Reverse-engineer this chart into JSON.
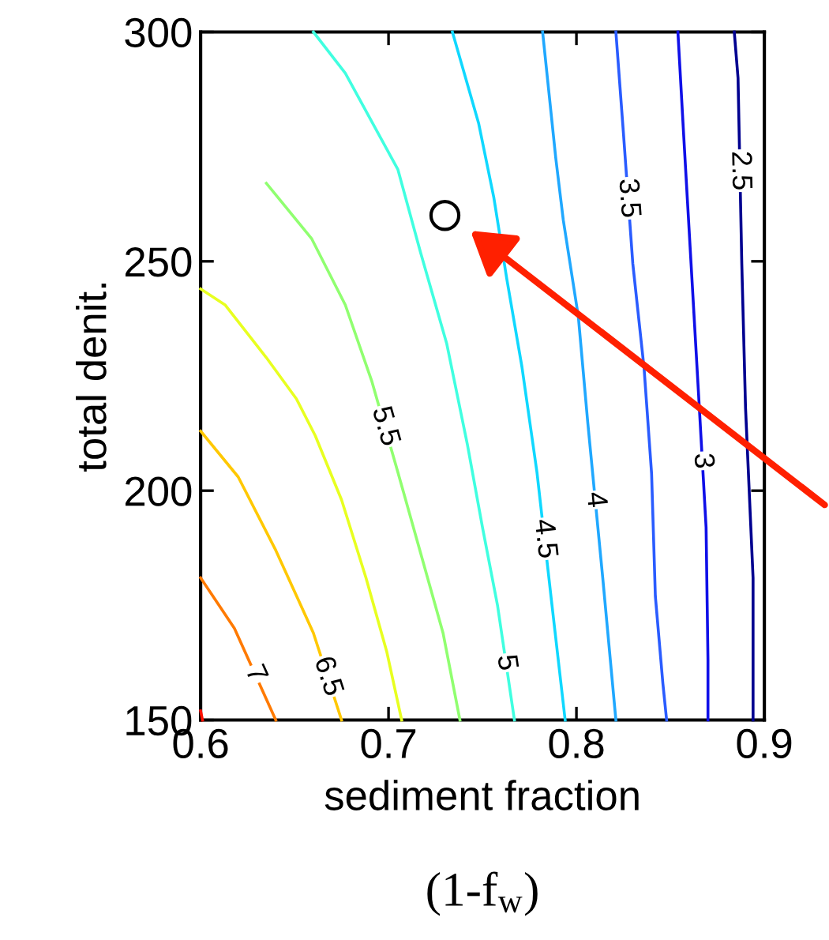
{
  "chart_data": {
    "type": "line",
    "xlabel": "sediment fraction",
    "ylabel": "total denit.",
    "annotations": [
      "(1-f$_{w}$)"
    ],
    "xlim": [
      0.6,
      0.9
    ],
    "ylim": [
      150,
      300
    ],
    "xticks": [
      0.6,
      0.7,
      0.8,
      0.9
    ],
    "yticks": [
      150,
      200,
      250,
      300
    ],
    "grid": false,
    "legend": false,
    "marker": "none",
    "line_style": "solid",
    "series": [
      {
        "color": "#ff1000",
        "x": [
          0.6,
          0.601
        ],
        "values": [
          152,
          150
        ]
      },
      {
        "name": "7",
        "color": "#ff7a00",
        "x": [
          0.6,
          0.618,
          0.64
        ],
        "values": [
          181,
          170,
          150
        ]
      },
      {
        "name": "6.5",
        "color": "#ffc800",
        "x": [
          0.6,
          0.62,
          0.64,
          0.66,
          0.675
        ],
        "values": [
          213,
          203,
          187,
          169,
          150
        ]
      },
      {
        "color": "#e8ff20",
        "x": [
          0.6,
          0.613,
          0.635,
          0.651,
          0.661,
          0.675,
          0.688,
          0.699,
          0.707
        ],
        "values": [
          244,
          240.5,
          229,
          220,
          212,
          198,
          181,
          165,
          150
        ]
      },
      {
        "name": "5.5",
        "color": "#90ff70",
        "x": [
          0.635,
          0.659,
          0.677,
          0.691,
          0.705,
          0.717,
          0.729,
          0.738
        ],
        "values": [
          267,
          255,
          240.5,
          224,
          204,
          186.5,
          169,
          150
        ]
      },
      {
        "name": "5",
        "color": "#40ffe0",
        "x": [
          0.66,
          0.677,
          0.705,
          0.717,
          0.731,
          0.742,
          0.75,
          0.758,
          0.767
        ],
        "values": [
          300,
          291,
          270,
          252,
          232,
          210,
          192,
          175,
          150
        ]
      },
      {
        "name": "4.5",
        "color": "#10d8ff",
        "x": [
          0.734,
          0.748,
          0.756,
          0.763,
          0.771,
          0.779,
          0.787,
          0.794
        ],
        "values": [
          300,
          280,
          264,
          246,
          227,
          204,
          175,
          150
        ]
      },
      {
        "name": "4",
        "color": "#20a8ff",
        "x": [
          0.782,
          0.789,
          0.793,
          0.801,
          0.806,
          0.814,
          0.821
        ],
        "values": [
          300,
          272.5,
          259,
          238,
          215,
          181,
          150
        ]
      },
      {
        "name": "3.5",
        "color": "#2a5cff",
        "x": [
          0.821,
          0.825,
          0.83,
          0.836,
          0.84,
          0.842,
          0.846,
          0.848
        ],
        "values": [
          300,
          278,
          249.5,
          226.7,
          203.7,
          177,
          158,
          150
        ]
      },
      {
        "name": "3",
        "color": "#1010e8",
        "x": [
          0.854,
          0.857,
          0.861,
          0.865,
          0.869,
          0.87,
          0.87
        ],
        "values": [
          300,
          278,
          249.5,
          221,
          192,
          163,
          150
        ]
      },
      {
        "name": "2.5",
        "color": "#000090",
        "x": [
          0.884,
          0.886,
          0.888,
          0.89,
          0.894,
          0.894
        ],
        "values": [
          300,
          290,
          249.5,
          218,
          181,
          150
        ]
      },
      {
        "type": "scatter",
        "marker": "circle",
        "color": "#000000",
        "x": [
          0.73
        ],
        "values": [
          260
        ]
      }
    ]
  }
}
